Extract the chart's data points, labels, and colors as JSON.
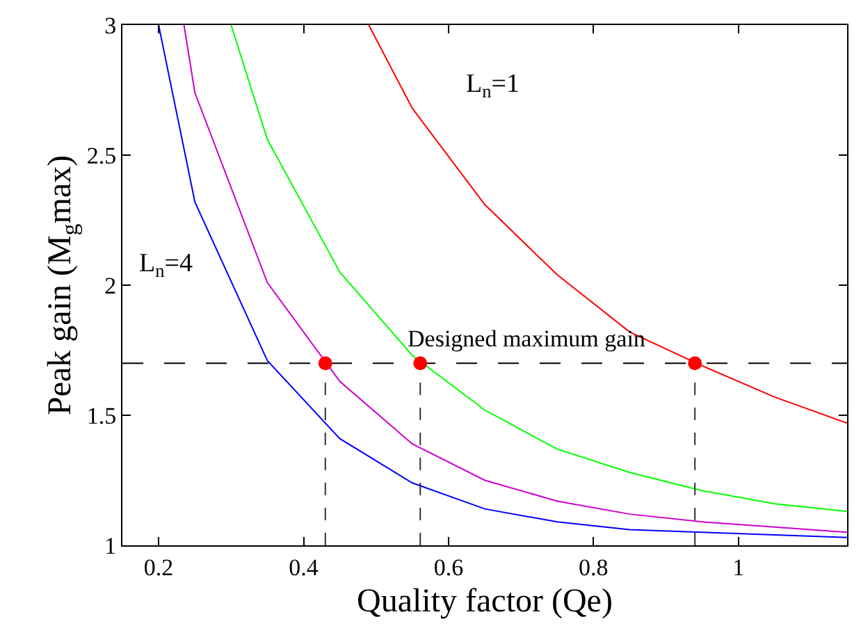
{
  "chart_data": {
    "type": "line",
    "xlabel": "Quality factor (Qe)",
    "ylabel": "Peak gain (M$_{g}$max)",
    "xlim": [
      0.15,
      1.15
    ],
    "ylim": [
      1,
      3
    ],
    "xticks": [
      0.2,
      0.4,
      0.6,
      0.8,
      1
    ],
    "yticks": [
      1,
      1.5,
      2,
      2.5,
      3
    ],
    "line_style": "solid",
    "series": [
      {
        "color": "#ff0000",
        "marker": "none",
        "x": [
          0.49,
          0.55,
          0.65,
          0.75,
          0.85,
          0.95,
          1.05,
          1.15
        ],
        "values": [
          3.0,
          2.68,
          2.31,
          2.04,
          1.82,
          1.69,
          1.57,
          1.47
        ]
      },
      {
        "color": "#00ff00",
        "marker": "none",
        "x": [
          0.3,
          0.35,
          0.45,
          0.55,
          0.65,
          0.75,
          0.85,
          0.95,
          1.05,
          1.15
        ],
        "values": [
          3.0,
          2.56,
          2.05,
          1.73,
          1.52,
          1.37,
          1.28,
          1.21,
          1.16,
          1.13
        ]
      },
      {
        "color": "#cc00cc",
        "marker": "none",
        "x": [
          0.235,
          0.25,
          0.35,
          0.45,
          0.55,
          0.65,
          0.75,
          0.85,
          0.95,
          1.05,
          1.15
        ],
        "values": [
          3.0,
          2.74,
          2.01,
          1.63,
          1.39,
          1.25,
          1.17,
          1.12,
          1.09,
          1.07,
          1.05
        ]
      },
      {
        "color": "#0000ff",
        "marker": "none",
        "x": [
          0.2,
          0.25,
          0.35,
          0.45,
          0.55,
          0.65,
          0.75,
          0.85,
          0.95,
          1.05,
          1.15
        ],
        "values": [
          3.0,
          2.32,
          1.71,
          1.41,
          1.24,
          1.14,
          1.09,
          1.06,
          1.05,
          1.04,
          1.03
        ]
      },
      {
        "type": "lollipop",
        "color": "#ff0000",
        "marker": "circle",
        "line_style": "dashed",
        "x": [
          0.43,
          0.561,
          0.94
        ],
        "values": [
          1.7,
          1.7,
          1.7
        ]
      }
    ],
    "ref_lines": [
      {
        "axis": "y",
        "value": 1.7,
        "label": "Designed maximum gain",
        "color": "#000000",
        "line_style": "dashed"
      }
    ],
    "annotations": [
      "L$_{n}$=1",
      "L$_{n}$=4"
    ]
  }
}
